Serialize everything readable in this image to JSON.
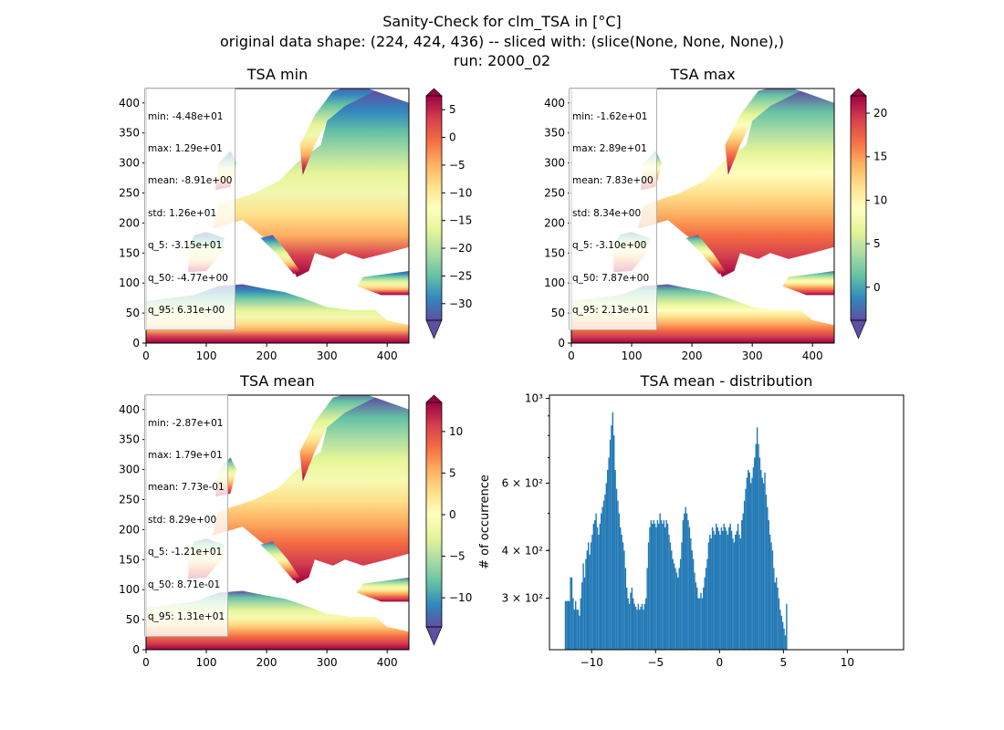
{
  "figure": {
    "title_lines": [
      "Sanity-Check for clm_TSA in [°C]",
      "original data shape: (224, 424, 436) -- sliced with: (slice(None, None, None),)",
      "run: 2000_02"
    ]
  },
  "panels": [
    {
      "title": "TSA min",
      "stats": [
        "min: -4.48e+01",
        "max: 1.29e+01",
        "mean: -8.91e+00",
        "std: 1.26e+01",
        "q_5: -3.15e+01",
        "q_50: -4.77e+00",
        "q_95: 6.31e+00"
      ],
      "colorbar": {
        "vmin": -33,
        "vmax": 7.5,
        "ticks": [
          5,
          0,
          -5,
          -10,
          -15,
          -20,
          -25,
          -30
        ]
      }
    },
    {
      "title": "TSA max",
      "stats": [
        "min: -1.62e+01",
        "max: 2.89e+01",
        "mean: 7.83e+00",
        "std: 8.34e+00",
        "q_5: -3.10e+00",
        "q_50: 7.87e+00",
        "q_95: 2.13e+01"
      ],
      "colorbar": {
        "vmin": -3.8,
        "vmax": 22,
        "ticks": [
          20,
          15,
          10,
          5,
          0
        ]
      }
    },
    {
      "title": "TSA mean",
      "stats": [
        "min: -2.87e+01",
        "max: 1.79e+01",
        "mean: 7.73e-01",
        "std: 8.29e+00",
        "q_5: -1.21e+01",
        "q_50: 8.71e-01",
        "q_95: 1.31e+01"
      ],
      "colorbar": {
        "vmin": -13.5,
        "vmax": 13.5,
        "ticks": [
          10,
          5,
          0,
          -5,
          -10
        ]
      }
    }
  ],
  "map_axes": {
    "xticks": [
      0,
      100,
      200,
      300,
      400
    ],
    "yticks": [
      0,
      50,
      100,
      150,
      200,
      250,
      300,
      350,
      400
    ],
    "xlim": [
      0,
      436
    ],
    "ylim": [
      0,
      424
    ]
  },
  "colormap": "Spectral_r",
  "chart_data": {
    "type": "bar",
    "title": "TSA mean - distribution",
    "xlabel": "",
    "ylabel": "# of occurrence",
    "xlim": [
      -13.3,
      14.4
    ],
    "ylim": [
      220,
      1020
    ],
    "yscale": "log",
    "xticks": [
      -10,
      -5,
      0,
      5,
      10
    ],
    "xtick_labels": [
      "−10",
      "−5",
      "0",
      "5",
      "10"
    ],
    "ytick_labels": [
      "3 × 10²",
      "4 × 10²",
      "6 × 10²",
      "10³"
    ],
    "yticks": [
      300,
      400,
      600,
      1000
    ],
    "bar_color": "#1f77b4",
    "bin_start": -12.1,
    "bin_width": 0.1,
    "values": [
      295,
      295,
      295,
      295,
      340,
      340,
      300,
      280,
      295,
      280,
      280,
      270,
      300,
      330,
      370,
      340,
      380,
      400,
      420,
      390,
      420,
      440,
      470,
      480,
      500,
      460,
      440,
      470,
      500,
      520,
      540,
      560,
      600,
      650,
      700,
      780,
      850,
      920,
      800,
      650,
      580,
      540,
      500,
      460,
      440,
      420,
      400,
      360,
      320,
      300,
      290,
      310,
      320,
      300,
      290,
      285,
      280,
      290,
      280,
      285,
      290,
      280,
      290,
      300,
      360,
      420,
      460,
      480,
      470,
      480,
      470,
      460,
      480,
      470,
      500,
      480,
      470,
      480,
      460,
      480,
      470,
      440,
      420,
      400,
      380,
      370,
      360,
      350,
      340,
      360,
      380,
      420,
      480,
      500,
      520,
      500,
      480,
      460,
      430,
      400,
      380,
      350,
      330,
      320,
      300,
      300,
      310,
      300,
      320,
      340,
      360,
      380,
      420,
      440,
      430,
      460,
      450,
      440,
      470,
      460,
      450,
      440,
      460,
      450,
      470,
      460,
      450,
      440,
      460,
      470,
      450,
      430,
      420,
      440,
      450,
      470,
      440,
      430,
      480,
      500,
      540,
      580,
      620,
      650,
      640,
      600,
      620,
      660,
      700,
      760,
      840,
      760,
      700,
      650,
      620,
      600,
      640,
      560,
      520,
      480,
      440,
      420,
      400,
      360,
      330,
      340,
      320,
      300,
      280,
      270,
      260,
      250,
      240,
      290
    ]
  }
}
